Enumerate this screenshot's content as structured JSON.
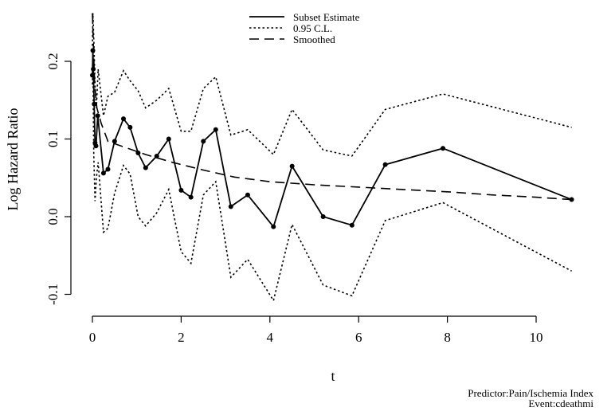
{
  "chart_data": {
    "type": "line",
    "xlabel": "t",
    "ylabel": "Log Hazard Ratio",
    "xlim": [
      0,
      11
    ],
    "ylim": [
      -0.12,
      0.27
    ],
    "x_ticks": [
      0,
      2,
      4,
      6,
      8,
      10
    ],
    "x_tick_labels": [
      "0",
      "2",
      "4",
      "6",
      "8",
      "10"
    ],
    "y_ticks": [
      -0.1,
      0.0,
      0.1,
      0.2
    ],
    "y_tick_labels": [
      "-0.1",
      "0.0",
      "0.1",
      "0.2"
    ],
    "legend_position": "top",
    "series": [
      {
        "name": "Subset Estimate",
        "style": "solid",
        "markers": true,
        "points": [
          [
            0.0,
            0.182
          ],
          [
            0.01,
            0.214
          ],
          [
            0.02,
            0.19
          ],
          [
            0.04,
            0.145
          ],
          [
            0.06,
            0.095
          ],
          [
            0.08,
            0.091
          ],
          [
            0.12,
            0.13
          ],
          [
            0.25,
            0.056
          ],
          [
            0.35,
            0.061
          ],
          [
            0.5,
            0.097
          ],
          [
            0.7,
            0.126
          ],
          [
            0.85,
            0.115
          ],
          [
            1.03,
            0.082
          ],
          [
            1.2,
            0.063
          ],
          [
            1.45,
            0.078
          ],
          [
            1.72,
            0.1
          ],
          [
            2.0,
            0.034
          ],
          [
            2.22,
            0.025
          ],
          [
            2.5,
            0.097
          ],
          [
            2.78,
            0.112
          ],
          [
            3.12,
            0.013
          ],
          [
            3.5,
            0.028
          ],
          [
            4.08,
            -0.013
          ],
          [
            4.5,
            0.065
          ],
          [
            5.2,
            0.0
          ],
          [
            5.85,
            -0.011
          ],
          [
            6.6,
            0.067
          ],
          [
            7.9,
            0.088
          ],
          [
            10.8,
            0.022
          ]
        ]
      },
      {
        "name": "0.95 C.L.",
        "style": "dotted",
        "markers": false,
        "points": [
          [
            0.0,
            0.22
          ],
          [
            0.01,
            0.262
          ],
          [
            0.03,
            0.23
          ],
          [
            0.06,
            0.17
          ],
          [
            0.09,
            0.14
          ],
          [
            0.13,
            0.19
          ],
          [
            0.25,
            0.13
          ],
          [
            0.35,
            0.155
          ],
          [
            0.5,
            0.16
          ],
          [
            0.7,
            0.188
          ],
          [
            0.85,
            0.175
          ],
          [
            1.03,
            0.162
          ],
          [
            1.2,
            0.14
          ],
          [
            1.45,
            0.15
          ],
          [
            1.72,
            0.165
          ],
          [
            2.0,
            0.11
          ],
          [
            2.22,
            0.11
          ],
          [
            2.5,
            0.165
          ],
          [
            2.78,
            0.18
          ],
          [
            3.12,
            0.105
          ],
          [
            3.5,
            0.112
          ],
          [
            4.08,
            0.08
          ],
          [
            4.5,
            0.138
          ],
          [
            5.2,
            0.086
          ],
          [
            5.85,
            0.078
          ],
          [
            6.6,
            0.138
          ],
          [
            7.9,
            0.158
          ],
          [
            10.8,
            0.115
          ]
        ]
      },
      {
        "name": "0.95 C.L. (lower)",
        "style": "dotted",
        "markers": false,
        "points": [
          [
            0.0,
            0.17
          ],
          [
            0.01,
            0.2
          ],
          [
            0.03,
            0.08
          ],
          [
            0.06,
            0.02
          ],
          [
            0.09,
            0.05
          ],
          [
            0.13,
            0.07
          ],
          [
            0.25,
            -0.02
          ],
          [
            0.35,
            -0.015
          ],
          [
            0.5,
            0.03
          ],
          [
            0.7,
            0.066
          ],
          [
            0.85,
            0.055
          ],
          [
            1.03,
            0.0
          ],
          [
            1.2,
            -0.012
          ],
          [
            1.45,
            0.005
          ],
          [
            1.72,
            0.035
          ],
          [
            2.0,
            -0.045
          ],
          [
            2.22,
            -0.06
          ],
          [
            2.5,
            0.028
          ],
          [
            2.78,
            0.045
          ],
          [
            3.12,
            -0.078
          ],
          [
            3.5,
            -0.055
          ],
          [
            4.08,
            -0.108
          ],
          [
            4.5,
            -0.01
          ],
          [
            5.2,
            -0.088
          ],
          [
            5.85,
            -0.102
          ],
          [
            6.6,
            -0.005
          ],
          [
            7.9,
            0.018
          ],
          [
            10.8,
            -0.07
          ]
        ]
      },
      {
        "name": "Smoothed",
        "style": "dashed",
        "markers": false,
        "points": [
          [
            0.0,
            0.262
          ],
          [
            0.05,
            0.17
          ],
          [
            0.1,
            0.14
          ],
          [
            0.2,
            0.12
          ],
          [
            0.35,
            0.097
          ],
          [
            0.7,
            0.09
          ],
          [
            1.2,
            0.08
          ],
          [
            1.8,
            0.07
          ],
          [
            2.5,
            0.06
          ],
          [
            3.2,
            0.051
          ],
          [
            4.0,
            0.045
          ],
          [
            5.0,
            0.041
          ],
          [
            6.0,
            0.038
          ],
          [
            7.0,
            0.035
          ],
          [
            8.0,
            0.032
          ],
          [
            9.0,
            0.028
          ],
          [
            10.0,
            0.025
          ],
          [
            10.8,
            0.022
          ]
        ]
      }
    ],
    "legend_entries": [
      {
        "label": "Subset Estimate",
        "style": "solid"
      },
      {
        "label": "0.95 C.L.",
        "style": "dotted"
      },
      {
        "label": "Smoothed",
        "style": "dashed"
      }
    ]
  },
  "footnote": {
    "predictor": "Predictor:Pain/Ischemia Index",
    "event": "Event:cdeathmi"
  }
}
